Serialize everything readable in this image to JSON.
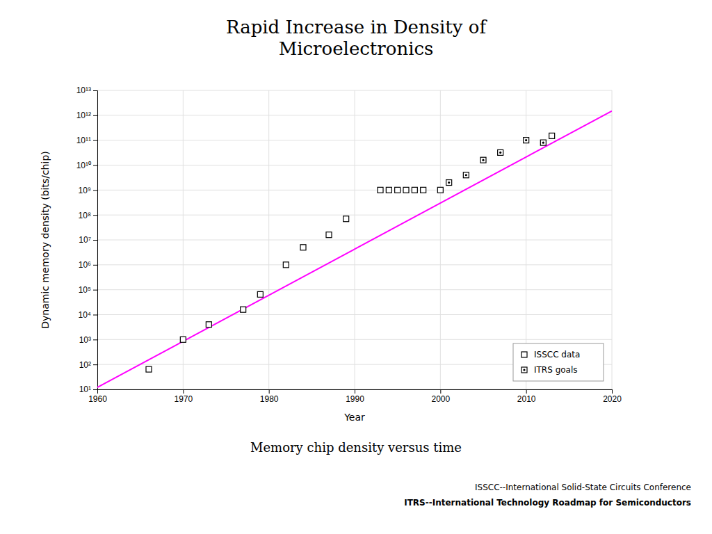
{
  "chart_data": {
    "type": "scatter",
    "title": "Rapid Increase in Density of\nMicroelectronics",
    "subtitle": "Memory chip density versus time",
    "annotations": [
      "ISSCC--International Solid-State Circuits Conference",
      "ITRS--International Technology Roadmap for Semiconductors"
    ],
    "xlabel": "Year",
    "ylabel": "Dynamic memory density (bits/chip)",
    "xlim": [
      1960,
      2020
    ],
    "xticks": [
      1960,
      1970,
      1980,
      1990,
      2000,
      2010,
      2020
    ],
    "ylim": [
      10,
      10000000000000.0
    ],
    "yticks": [
      {
        "value": 10,
        "label": "10¹"
      },
      {
        "value": 100,
        "label": "10²"
      },
      {
        "value": 1000,
        "label": "10³"
      },
      {
        "value": 10000,
        "label": "10⁴"
      },
      {
        "value": 100000,
        "label": "10⁵"
      },
      {
        "value": 1000000,
        "label": "10⁶"
      },
      {
        "value": 10000000,
        "label": "10⁷"
      },
      {
        "value": 100000000,
        "label": "10⁸"
      },
      {
        "value": 1000000000,
        "label": "10⁹"
      },
      {
        "value": 10000000000,
        "label": "10¹⁰"
      },
      {
        "value": 100000000000,
        "label": "10¹¹"
      },
      {
        "value": 1000000000000,
        "label": "10¹²"
      },
      {
        "value": 10000000000000,
        "label": "10¹³"
      }
    ],
    "log": "y",
    "grid": true,
    "legend": "lower right",
    "series": [
      {
        "name": "ISSCC data",
        "marker": "square",
        "color": "black",
        "x": [
          1966,
          1970,
          1973,
          1977,
          1979,
          1982,
          1984,
          1987,
          1989,
          1993,
          1994,
          1995,
          1996,
          1997,
          1998,
          2000,
          2013
        ],
        "values": [
          64,
          1000,
          4000,
          16000,
          65000,
          1000000,
          5000000,
          16000000.0,
          70000000.0,
          1000000000.0,
          1000000000.0,
          1000000000.0,
          1000000000.0,
          1000000000.0,
          1000000000.0,
          1000000000.0,
          150000000000.0
        ]
      },
      {
        "name": "ITRS goals",
        "marker": "square-dot",
        "color": "black",
        "x": [
          2001,
          2003,
          2005,
          2007,
          2010,
          2012
        ],
        "values": [
          2000000000.0,
          4000000000.0,
          16000000000.0,
          32000000000.0,
          100000000000.0,
          80000000000.0
        ]
      },
      {
        "type": "line",
        "color": "#ff00ff",
        "x": [
          1960,
          2020
        ],
        "values": [
          12,
          1500000000000.0
        ]
      }
    ]
  }
}
